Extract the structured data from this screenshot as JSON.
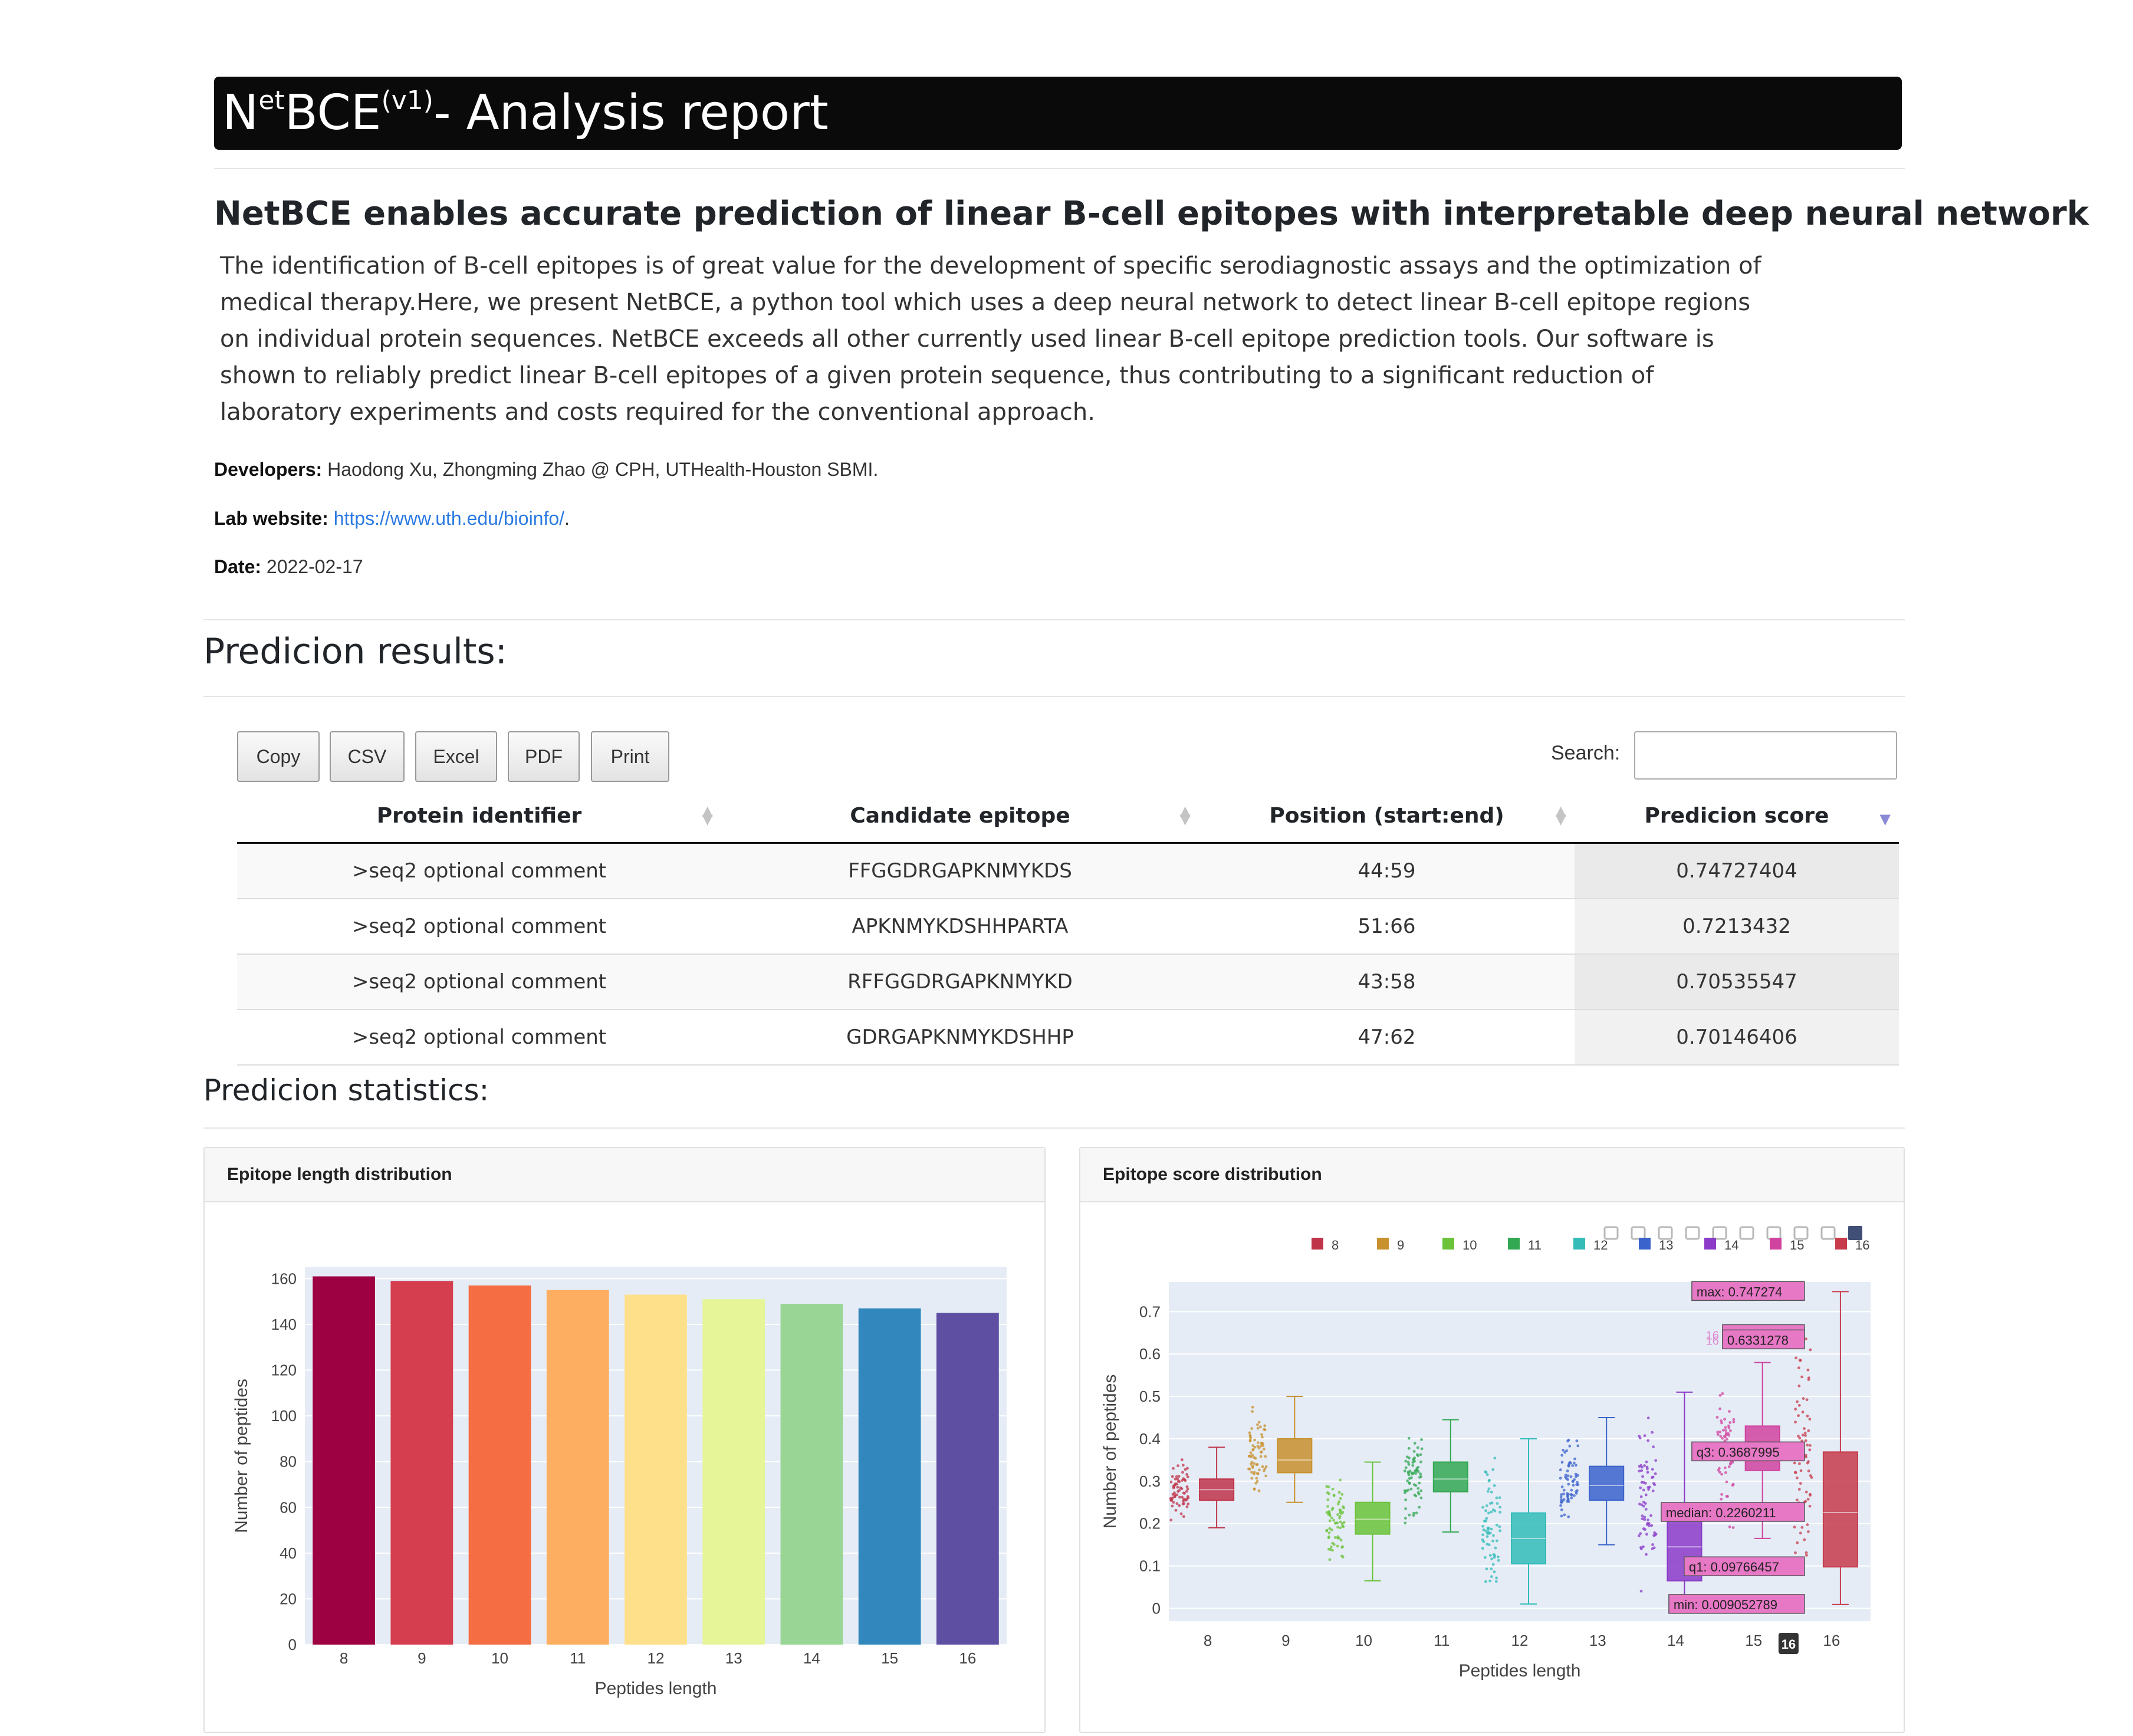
{
  "header": {
    "title_prefix": "N",
    "title_sup1": "et",
    "title_mid": "BCE",
    "title_sup2": "(v1)",
    "title_suffix": "- Analysis report"
  },
  "intro": {
    "subtitle": "NetBCE enables accurate prediction of linear B-cell epitopes with interpretable deep neural network",
    "paragraph": "The identification of B-cell epitopes is of great value for the development of specific serodiagnostic assays and the optimization of medical therapy.Here, we present NetBCE, a python tool which uses a deep neural network to detect linear B-cell epitope regions on individual protein sequences. NetBCE exceeds all other currently used linear B-cell epitope prediction tools. Our software is shown to reliably predict linear B-cell epitopes of a given protein sequence, thus contributing to a significant reduction of laboratory experiments and costs required for the conventional approach.",
    "developers_label": "Developers:",
    "developers": "Haodong Xu, Zhongming Zhao @ CPH, UTHealth-Houston SBMI.",
    "lab_label": "Lab website:",
    "lab_url": "https://www.uth.edu/bioinfo/",
    "lab_dot": ".",
    "date_label": "Date:",
    "date": "2022-02-17"
  },
  "results": {
    "heading": "Predicion results:",
    "buttons": [
      "Copy",
      "CSV",
      "Excel",
      "PDF",
      "Print"
    ],
    "search_label": "Search:",
    "columns": [
      "Protein identifier",
      "Candidate epitope",
      "Position (start:end)",
      "Predicion score"
    ],
    "rows": [
      [
        ">seq2 optional comment",
        "FFGGDRGAPKNMYKDS",
        "44:59",
        "0.74727404"
      ],
      [
        ">seq2 optional comment",
        "APKNMYKDSHHPARTA",
        "51:66",
        "0.7213432"
      ],
      [
        ">seq2 optional comment",
        "RFFGGDRGAPKNMYKD",
        "43:58",
        "0.70535547"
      ],
      [
        ">seq2 optional comment",
        "GDRGAPKNMYKDSHHP",
        "47:62",
        "0.70146406"
      ]
    ]
  },
  "statistics": {
    "heading": "Predicion statistics:",
    "length_card_title": "Epitope length distribution",
    "score_card_title": "Epitope score distribution"
  },
  "chart_data": [
    {
      "type": "bar",
      "xlabel": "Peptides length",
      "ylabel": "Number of peptides",
      "categories": [
        "8",
        "9",
        "10",
        "11",
        "12",
        "13",
        "14",
        "15",
        "16"
      ],
      "values": [
        161,
        159,
        157,
        155,
        153,
        151,
        149,
        147,
        145
      ],
      "ylim": [
        0,
        165
      ],
      "yticks": [
        0,
        20,
        40,
        60,
        80,
        100,
        120,
        140,
        160
      ],
      "colors": [
        "#9e0142",
        "#d53e4f",
        "#f46d43",
        "#fdae61",
        "#fee08b",
        "#e6f598",
        "#99d594",
        "#3288bd",
        "#5e4fa2"
      ],
      "grid": true
    },
    {
      "type": "box",
      "xlabel": "Peptides length",
      "ylabel": "Number of peptides",
      "categories": [
        "8",
        "9",
        "10",
        "11",
        "12",
        "13",
        "14",
        "15",
        "16"
      ],
      "legend": [
        "8",
        "9",
        "10",
        "11",
        "12",
        "13",
        "14",
        "15",
        "16"
      ],
      "legend_position": "top",
      "ylim": [
        -0.03,
        0.77
      ],
      "yticks": [
        0,
        0.1,
        0.2,
        0.3,
        0.4,
        0.5,
        0.6,
        0.7
      ],
      "yticklabels": [
        "0",
        "0.1",
        "0.2",
        "0.3",
        "0.4",
        "0.5",
        "0.6",
        "0.7"
      ],
      "colors": [
        "#c0344a",
        "#c8912d",
        "#6bc33a",
        "#32a852",
        "#33bcb8",
        "#3b63cc",
        "#8b3bc8",
        "#d0439f",
        "#c73b4b"
      ],
      "boxes": [
        {
          "min": 0.19,
          "q1": 0.255,
          "median": 0.28,
          "q3": 0.305,
          "max": 0.38
        },
        {
          "min": 0.25,
          "q1": 0.32,
          "median": 0.35,
          "q3": 0.4,
          "max": 0.5
        },
        {
          "min": 0.065,
          "q1": 0.175,
          "median": 0.21,
          "q3": 0.25,
          "max": 0.345
        },
        {
          "min": 0.18,
          "q1": 0.275,
          "median": 0.305,
          "q3": 0.345,
          "max": 0.445
        },
        {
          "min": 0.01,
          "q1": 0.105,
          "median": 0.165,
          "q3": 0.225,
          "max": 0.4
        },
        {
          "min": 0.15,
          "q1": 0.255,
          "median": 0.29,
          "q3": 0.335,
          "max": 0.45
        },
        {
          "min": 0.01,
          "q1": 0.065,
          "median": 0.145,
          "q3": 0.235,
          "max": 0.51
        },
        {
          "min": 0.165,
          "q1": 0.325,
          "median": 0.37,
          "q3": 0.43,
          "max": 0.58
        },
        {
          "min": 0.009052789,
          "q1": 0.09766457,
          "median": 0.2260211,
          "q3": 0.3687995,
          "max": 0.747274
        }
      ],
      "hover_category": "16",
      "hover_labels": [
        {
          "text": "max: 0.747274",
          "value": 0.747274
        },
        {
          "text": "0.6455669",
          "value": 0.6455669,
          "prefix": "16"
        },
        {
          "text": "0.6331278",
          "value": 0.6331278,
          "prefix": "16"
        },
        {
          "text": "q3: 0.3687995",
          "value": 0.3687995
        },
        {
          "text": "median: 0.2260211",
          "value": 0.2260211
        },
        {
          "text": "q1: 0.09766457",
          "value": 0.09766457
        },
        {
          "text": "min: 0.009052789",
          "value": 0.009052789
        }
      ],
      "modebar_icons": [
        "camera-icon",
        "zoom-icon",
        "pan-icon",
        "box-select-icon",
        "lasso-icon",
        "zoom-in-icon",
        "zoom-out-icon",
        "autoscale-icon",
        "reset-axes-icon",
        "plotly-logo-icon"
      ]
    }
  ]
}
